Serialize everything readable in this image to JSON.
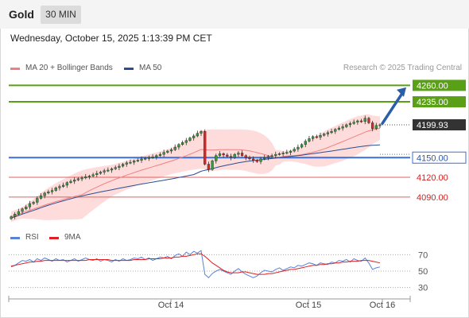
{
  "header": {
    "symbol": "Gold",
    "timeframe": "30 MIN",
    "datetime": "Wednesday, October 15, 2025 1:13:39 PM CET"
  },
  "legend": {
    "ma20_label": "MA 20 + Bollinger Bands",
    "ma50_label": "MA 50",
    "credit": "Research © 2025 Trading Central"
  },
  "rsi_legend": {
    "rsi_label": "RSI",
    "ma_label": "9MA"
  },
  "colors": {
    "candle_up": "#3a9a3a",
    "candle_down": "#d62b2b",
    "bollinger_fill": "#ffd6d6",
    "ma20": "#f08080",
    "ma50": "#2a4f8f",
    "resistance": "#5aa017",
    "pivot": "#3d6fd6",
    "support": "#e06060",
    "arrow": "#2a5fa8",
    "rsi": "#5a82d6",
    "rsi_ma": "#e02020"
  },
  "chart_data": [
    {
      "type": "candlestick",
      "title": "Gold",
      "timeframe": "30 MIN",
      "x_labels": [
        "Oct 14",
        "Oct 15",
        "Oct 16"
      ],
      "ylim": [
        4045,
        4275
      ],
      "closes": [
        4060,
        4064,
        4068,
        4072,
        4075,
        4080,
        4082,
        4088,
        4092,
        4096,
        4098,
        4100,
        4104,
        4106,
        4108,
        4112,
        4114,
        4116,
        4118,
        4119,
        4121,
        4122,
        4124,
        4126,
        4128,
        4130,
        4131,
        4133,
        4135,
        4137,
        4140,
        4142,
        4143,
        4145,
        4146,
        4148,
        4149,
        4150,
        4151,
        4153,
        4155,
        4158,
        4160,
        4162,
        4166,
        4170,
        4173,
        4176,
        4180,
        4183,
        4187,
        4190,
        4140,
        4132,
        4145,
        4153,
        4156,
        4154,
        4152,
        4150,
        4155,
        4157,
        4153,
        4150,
        4148,
        4146,
        4144,
        4148,
        4150,
        4152,
        4153,
        4155,
        4156,
        4157,
        4158,
        4160,
        4163,
        4166,
        4170,
        4175,
        4179,
        4182,
        4181,
        4184,
        4186,
        4188,
        4190,
        4193,
        4195,
        4197,
        4200,
        4202,
        4204,
        4206,
        4205,
        4210,
        4203,
        4194,
        4199,
        4200
      ],
      "levels": [
        {
          "label": "4260.00",
          "value": 4260,
          "kind": "resistance"
        },
        {
          "label": "4235.00",
          "value": 4235,
          "kind": "resistance"
        },
        {
          "label": "4199.93",
          "value": 4199.93,
          "kind": "last"
        },
        {
          "label": "4150.00",
          "value": 4150,
          "kind": "pivot"
        },
        {
          "label": "4120.00",
          "value": 4120,
          "kind": "support"
        },
        {
          "label": "4090.00",
          "value": 4090,
          "kind": "support"
        }
      ],
      "indicators": [
        "MA 20 + Bollinger Bands",
        "MA 50"
      ]
    },
    {
      "type": "line",
      "title": "RSI",
      "ylim": [
        20,
        80
      ],
      "y_ticks": [
        70,
        50,
        30
      ],
      "series": [
        {
          "name": "RSI",
          "values": [
            55,
            57,
            60,
            63,
            62,
            64,
            61,
            65,
            63,
            66,
            64,
            62,
            65,
            63,
            64,
            61,
            63,
            65,
            62,
            64,
            66,
            64,
            63,
            65,
            62,
            64,
            63,
            61,
            64,
            62,
            65,
            63,
            64,
            66,
            65,
            67,
            64,
            66,
            63,
            65,
            67,
            66,
            68,
            65,
            69,
            71,
            68,
            73,
            70,
            74,
            72,
            75,
            46,
            42,
            47,
            50,
            52,
            50,
            48,
            46,
            50,
            53,
            49,
            46,
            44,
            42,
            44,
            48,
            51,
            50,
            49,
            52,
            54,
            51,
            53,
            55,
            54,
            57,
            56,
            58,
            60,
            59,
            57,
            60,
            59,
            58,
            61,
            60,
            63,
            62,
            64,
            61,
            65,
            63,
            62,
            66,
            60,
            52,
            54,
            55
          ]
        },
        {
          "name": "9MA",
          "values": [
            56,
            57,
            58,
            59,
            60,
            61,
            61,
            62,
            62,
            63,
            63,
            63,
            63,
            63,
            63,
            63,
            63,
            63,
            63,
            63,
            63,
            64,
            64,
            64,
            64,
            64,
            64,
            63,
            63,
            63,
            63,
            63,
            63,
            64,
            64,
            64,
            64,
            65,
            65,
            65,
            65,
            66,
            66,
            66,
            67,
            67,
            68,
            68,
            69,
            70,
            71,
            71,
            68,
            64,
            60,
            57,
            54,
            51,
            49,
            48,
            48,
            48,
            49,
            49,
            48,
            47,
            46,
            46,
            46,
            47,
            47,
            48,
            49,
            50,
            51,
            52,
            52,
            53,
            54,
            55,
            56,
            57,
            57,
            58,
            58,
            59,
            59,
            60,
            60,
            61,
            61,
            62,
            62,
            62,
            63,
            63,
            63,
            62,
            61,
            60
          ]
        }
      ]
    }
  ]
}
